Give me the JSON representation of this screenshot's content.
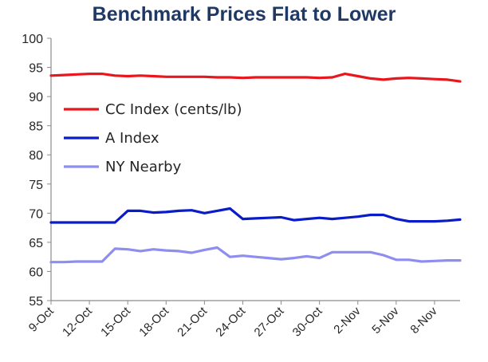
{
  "chart_data": {
    "type": "line",
    "title": "Benchmark Prices Flat to Lower",
    "xlabel": "",
    "ylabel": "",
    "ylim": [
      55,
      100
    ],
    "yticks": [
      55,
      60,
      65,
      70,
      75,
      80,
      85,
      90,
      95,
      100
    ],
    "grid": false,
    "legend_position": "center-left",
    "x": [
      "9-Oct",
      "10-Oct",
      "11-Oct",
      "12-Oct",
      "13-Oct",
      "14-Oct",
      "15-Oct",
      "16-Oct",
      "17-Oct",
      "18-Oct",
      "19-Oct",
      "20-Oct",
      "21-Oct",
      "22-Oct",
      "23-Oct",
      "24-Oct",
      "25-Oct",
      "26-Oct",
      "27-Oct",
      "28-Oct",
      "29-Oct",
      "30-Oct",
      "31-Oct",
      "1-Nov",
      "2-Nov",
      "3-Nov",
      "4-Nov",
      "5-Nov",
      "6-Nov",
      "7-Nov",
      "8-Nov",
      "9-Nov",
      "10-Nov"
    ],
    "x_tick_labels": [
      "9-Oct",
      "12-Oct",
      "15-Oct",
      "18-Oct",
      "21-Oct",
      "24-Oct",
      "27-Oct",
      "30-Oct",
      "2-Nov",
      "5-Nov",
      "8-Nov"
    ],
    "series": [
      {
        "name": "CC Index (cents/lb)",
        "color": "#E8171E",
        "values": [
          93.6,
          93.7,
          93.8,
          93.9,
          93.9,
          93.6,
          93.5,
          93.6,
          93.5,
          93.4,
          93.4,
          93.4,
          93.4,
          93.3,
          93.3,
          93.2,
          93.3,
          93.3,
          93.3,
          93.3,
          93.3,
          93.2,
          93.3,
          93.9,
          93.5,
          93.1,
          92.9,
          93.1,
          93.2,
          93.1,
          93.0,
          92.9,
          92.6
        ]
      },
      {
        "name": "A Index",
        "color": "#0A1CC8",
        "values": [
          68.4,
          68.4,
          68.4,
          68.4,
          68.4,
          68.4,
          70.4,
          70.4,
          70.1,
          70.2,
          70.4,
          70.5,
          70.0,
          70.4,
          70.8,
          69.0,
          69.1,
          69.2,
          69.3,
          68.8,
          69.0,
          69.2,
          69.0,
          69.2,
          69.4,
          69.7,
          69.7,
          69.0,
          68.6,
          68.6,
          68.6,
          68.7,
          68.9
        ]
      },
      {
        "name": "NY Nearby",
        "color": "#8E8EF0",
        "values": [
          61.6,
          61.6,
          61.7,
          61.7,
          61.7,
          63.9,
          63.8,
          63.5,
          63.8,
          63.6,
          63.5,
          63.2,
          63.7,
          64.1,
          62.5,
          62.7,
          62.5,
          62.3,
          62.1,
          62.3,
          62.6,
          62.3,
          63.3,
          63.3,
          63.3,
          63.3,
          62.8,
          62.0,
          62.0,
          61.7,
          61.8,
          61.9,
          61.9
        ]
      }
    ]
  }
}
